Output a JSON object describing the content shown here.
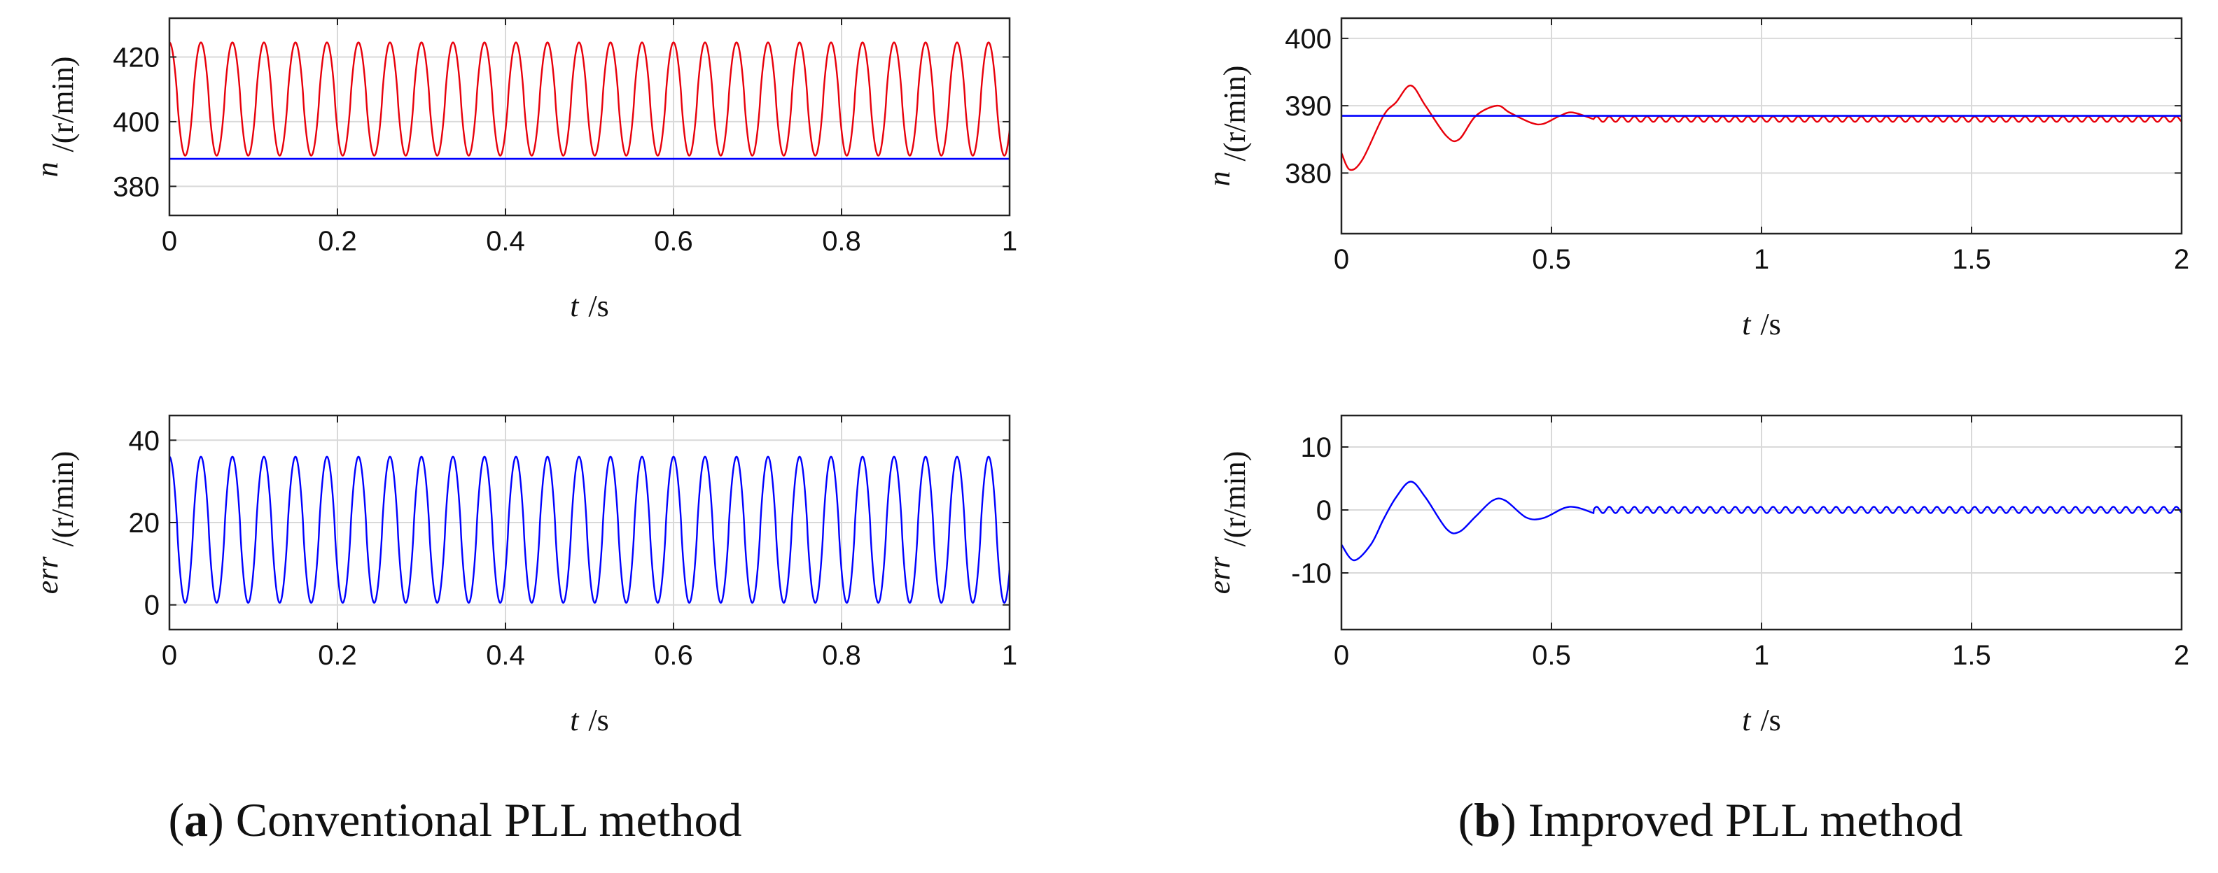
{
  "captions": {
    "a": {
      "letter": "a",
      "text": "Conventional PLL method"
    },
    "b": {
      "letter": "b",
      "text": "Improved PLL method"
    }
  },
  "chart_data": [
    {
      "id": "a-speed",
      "type": "line",
      "ylabel_var": "n",
      "ylabel_unit": "/(r/min)",
      "xlabel_var": "t",
      "xlabel_unit": "/s",
      "xlim": [
        0,
        1
      ],
      "ylim": [
        371,
        432
      ],
      "xticks": [
        0,
        0.2,
        0.4,
        0.6,
        0.8,
        1
      ],
      "xtick_labels": [
        "0",
        "0.2",
        "0.4",
        "0.6",
        "0.8",
        "1"
      ],
      "yticks": [
        380,
        400,
        420
      ],
      "ytick_labels": [
        "380",
        "400",
        "420"
      ],
      "grid": true,
      "series": [
        {
          "color": "#e8000b",
          "kind": "oscillation",
          "description_values": {
            "start": 423,
            "min": 389.5,
            "max": 424.5,
            "period": 0.0375,
            "phase": 0.075
          }
        },
        {
          "color": "#0000ff",
          "kind": "constant",
          "value": 388.5
        }
      ]
    },
    {
      "id": "a-error",
      "type": "line",
      "ylabel_var": "err",
      "ylabel_unit": "/(r/min)",
      "xlabel_var": "t",
      "xlabel_unit": "/s",
      "xlim": [
        0,
        1
      ],
      "ylim": [
        -6,
        46
      ],
      "xticks": [
        0,
        0.2,
        0.4,
        0.6,
        0.8,
        1
      ],
      "xtick_labels": [
        "0",
        "0.2",
        "0.4",
        "0.6",
        "0.8",
        "1"
      ],
      "yticks": [
        0,
        20,
        40
      ],
      "ytick_labels": [
        "0",
        "20",
        "40"
      ],
      "grid": true,
      "series": [
        {
          "color": "#0000ff",
          "kind": "oscillation",
          "description_values": {
            "start": 34.5,
            "min": 0.5,
            "max": 36,
            "period": 0.0375,
            "phase": 0.075
          }
        }
      ]
    },
    {
      "id": "b-speed",
      "type": "line",
      "ylabel_var": "n",
      "ylabel_unit": "/(r/min)",
      "xlabel_var": "t",
      "xlabel_unit": "/s",
      "xlim": [
        0,
        2
      ],
      "ylim": [
        371,
        403
      ],
      "xticks": [
        0,
        0.5,
        1,
        1.5,
        2
      ],
      "xtick_labels": [
        "0",
        "0.5",
        "1",
        "1.5",
        "2"
      ],
      "yticks": [
        380,
        390,
        400
      ],
      "ytick_labels": [
        "380",
        "390",
        "400"
      ],
      "grid": true,
      "series": [
        {
          "color": "#e8000b",
          "kind": "points",
          "x": [
            0,
            0.02,
            0.05,
            0.1,
            0.13,
            0.165,
            0.2,
            0.25,
            0.28,
            0.32,
            0.37,
            0.4,
            0.45,
            0.48,
            0.52,
            0.55,
            0.6
          ],
          "y": [
            383,
            380.5,
            382,
            388.5,
            390.5,
            393,
            390,
            385.5,
            385,
            388.5,
            390,
            389,
            387.5,
            387.3,
            388.5,
            389,
            388
          ],
          "tail": {
            "center": 388,
            "amplitude": 0.4,
            "period": 0.03,
            "until": 2
          }
        },
        {
          "color": "#0000ff",
          "kind": "constant",
          "value": 388.5
        }
      ]
    },
    {
      "id": "b-error",
      "type": "line",
      "ylabel_var": "err",
      "ylabel_unit": "/(r/min)",
      "xlabel_var": "t",
      "xlabel_unit": "/s",
      "xlim": [
        0,
        2
      ],
      "ylim": [
        -19,
        15
      ],
      "xticks": [
        0,
        0.5,
        1,
        1.5,
        2
      ],
      "xtick_labels": [
        "0",
        "0.5",
        "1",
        "1.5",
        "2"
      ],
      "yticks": [
        -10,
        0,
        10
      ],
      "ytick_labels": [
        "-10",
        "0",
        "10"
      ],
      "grid": true,
      "series": [
        {
          "color": "#0000ff",
          "kind": "points",
          "x": [
            0,
            0.03,
            0.07,
            0.1,
            0.13,
            0.165,
            0.2,
            0.25,
            0.28,
            0.32,
            0.36,
            0.39,
            0.44,
            0.48,
            0.53,
            0.56,
            0.6
          ],
          "y": [
            -5.5,
            -8,
            -5.5,
            -1.5,
            2,
            4.5,
            2,
            -3,
            -3.5,
            -1,
            1.5,
            1.5,
            -1.2,
            -1.3,
            0.3,
            0.4,
            -0.5
          ],
          "tail": {
            "center": 0,
            "amplitude": 0.5,
            "period": 0.03,
            "until": 2
          }
        }
      ]
    }
  ]
}
